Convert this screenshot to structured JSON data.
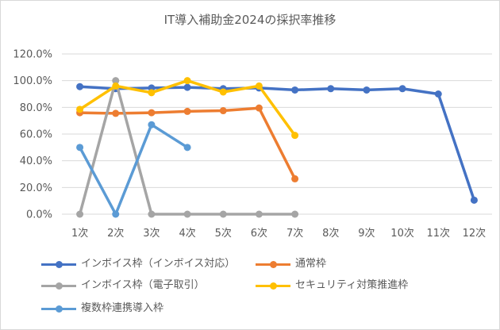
{
  "chart_data": {
    "type": "line",
    "title": "IT導入補助金2024の採択率推移",
    "categories": [
      "1次",
      "2次",
      "3次",
      "4次",
      "5次",
      "6次",
      "7次",
      "8次",
      "9次",
      "10次",
      "11次",
      "12次"
    ],
    "y_ticks": [
      "0.0%",
      "20.0%",
      "40.0%",
      "60.0%",
      "80.0%",
      "100.0%",
      "120.0%"
    ],
    "ylim": [
      0,
      120
    ],
    "grid": true,
    "legend_position": "bottom",
    "series": [
      {
        "name": "インボイス枠（インボイス対応）",
        "color": "#4472c4",
        "values": [
          95.5,
          94.0,
          94.5,
          95.0,
          94.0,
          94.5,
          93.0,
          94.0,
          93.0,
          94.0,
          90.0,
          10.5
        ]
      },
      {
        "name": "通常枠",
        "color": "#ed7d31",
        "values": [
          76.0,
          75.5,
          76.0,
          77.0,
          77.5,
          79.5,
          26.5,
          null,
          null,
          null,
          null,
          null
        ]
      },
      {
        "name": "インボイス枠（電子取引）",
        "color": "#a5a5a5",
        "values": [
          0,
          100,
          0,
          0,
          0,
          0,
          0,
          null,
          null,
          null,
          null,
          null
        ]
      },
      {
        "name": "セキュリティ対策推進枠",
        "color": "#ffc000",
        "values": [
          78.5,
          96.0,
          91.0,
          100.0,
          91.5,
          96.0,
          59.0,
          null,
          null,
          null,
          null,
          null
        ]
      },
      {
        "name": "複数枠連携導入枠",
        "color": "#5b9bd5",
        "values": [
          50.0,
          0,
          67.0,
          50.0,
          null,
          null,
          null,
          null,
          null,
          null,
          null,
          null
        ]
      }
    ]
  }
}
